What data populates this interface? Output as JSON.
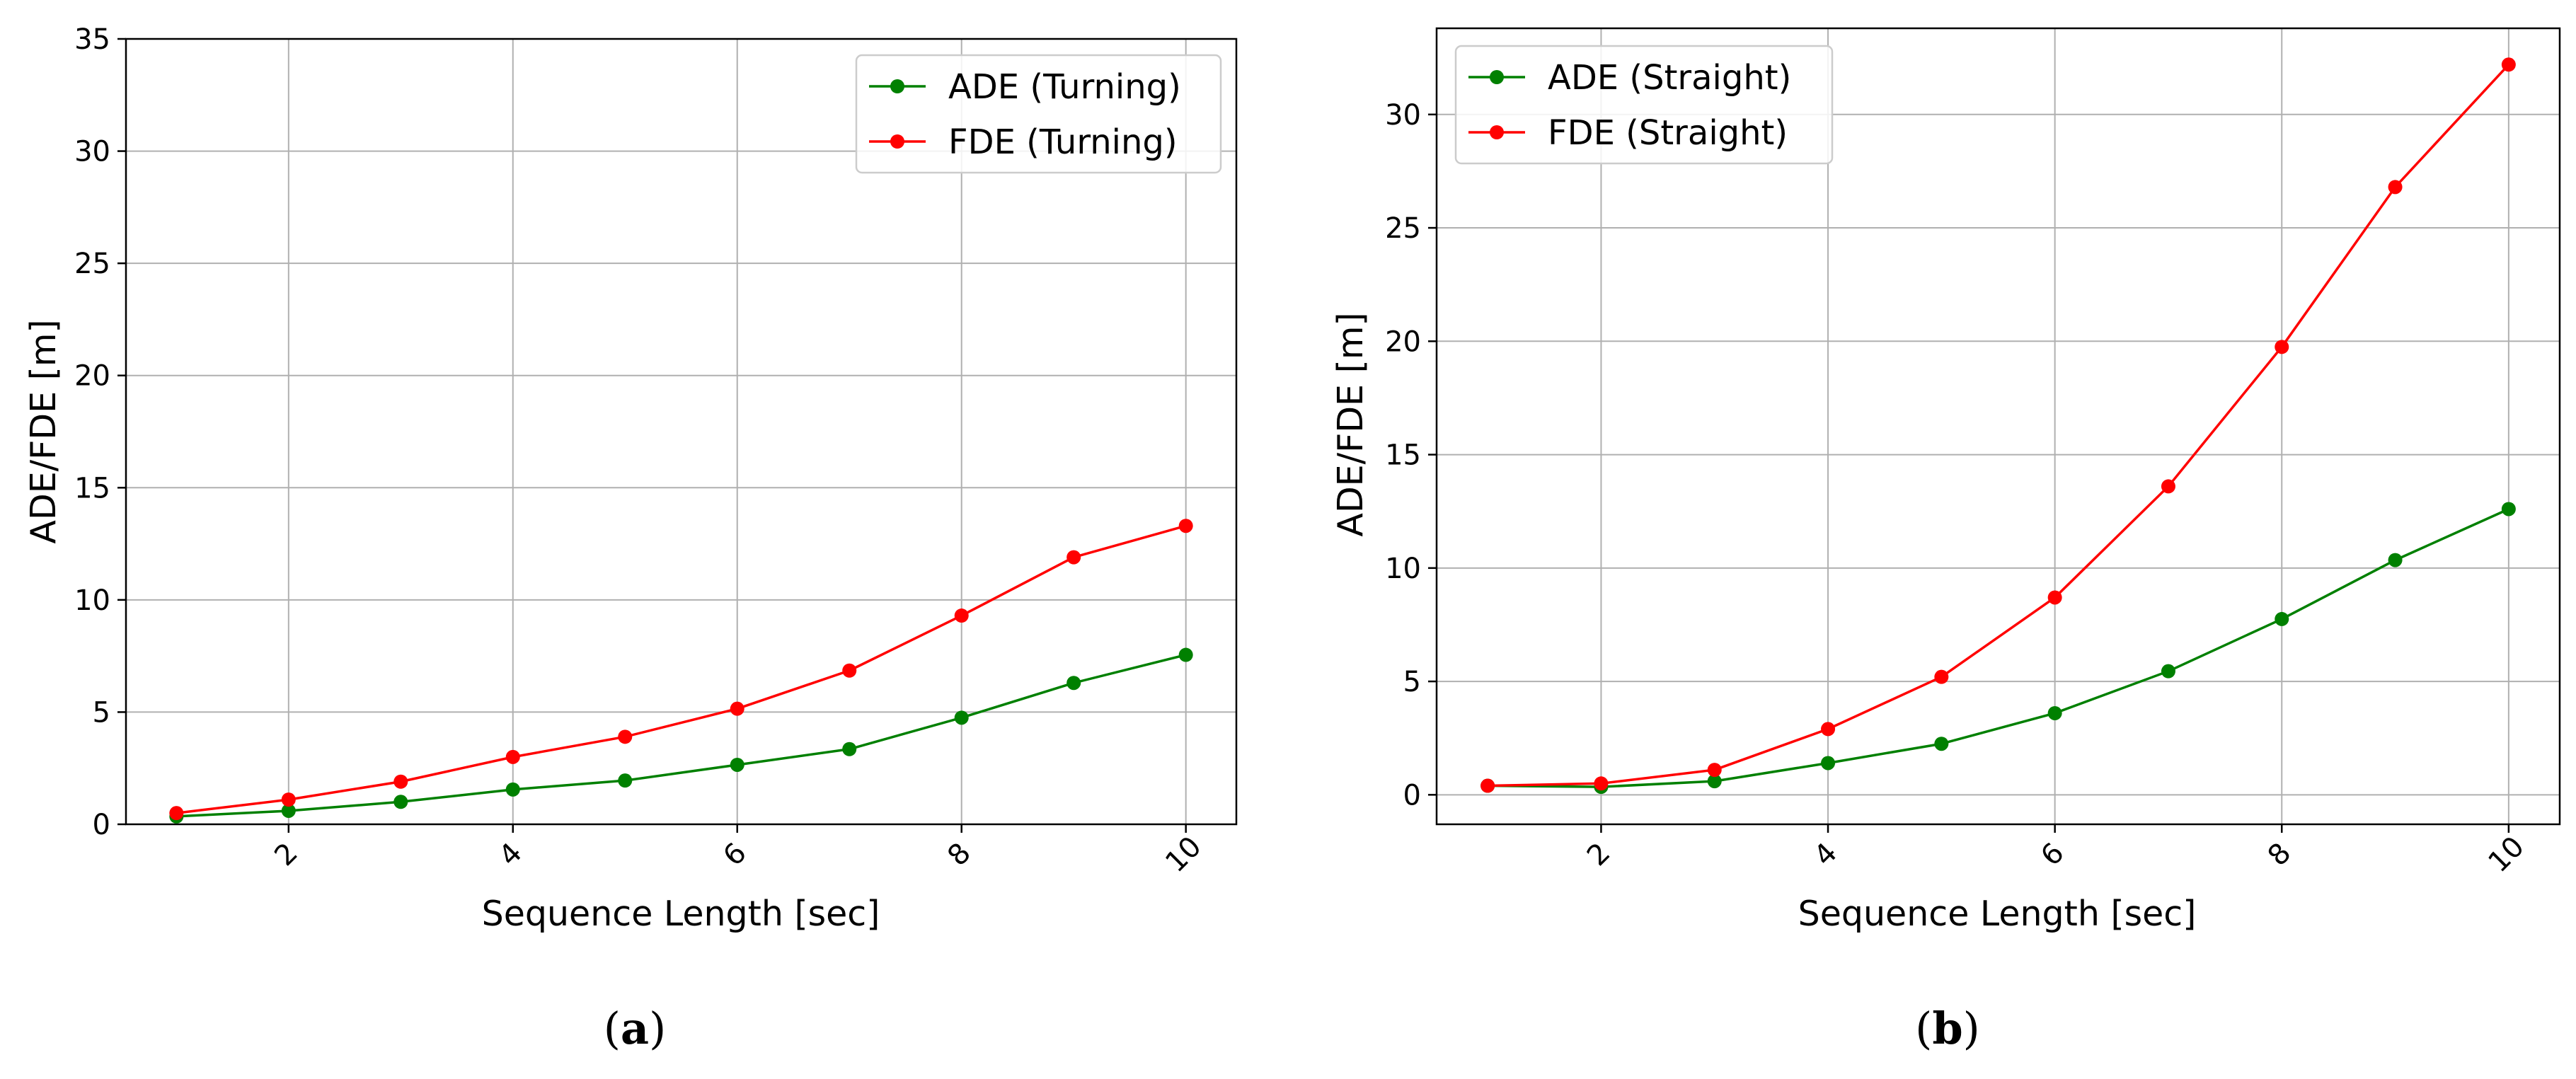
{
  "chart_data": [
    {
      "type": "line",
      "panel": "(a)",
      "panel_label": "a",
      "title": "",
      "xlabel": "Sequence Length [sec]",
      "ylabel": "ADE/FDE [m]",
      "x": [
        1,
        2,
        3,
        4,
        5,
        6,
        7,
        8,
        9,
        10
      ],
      "xlim": [
        0.55,
        10.45
      ],
      "ylim": [
        0,
        35
      ],
      "xticks": [
        2,
        4,
        6,
        8,
        10
      ],
      "xtick_labels": [
        "2",
        "4",
        "6",
        "8",
        "10"
      ],
      "yticks": [
        0,
        5,
        10,
        15,
        20,
        25,
        30,
        35
      ],
      "ytick_labels": [
        "0",
        "5",
        "10",
        "15",
        "20",
        "25",
        "30",
        "35"
      ],
      "grid": true,
      "legend_position": "top-right",
      "series": [
        {
          "name": "ADE (Turning)",
          "color": "#008000",
          "values": [
            0.35,
            0.6,
            1.0,
            1.55,
            1.95,
            2.65,
            3.35,
            4.75,
            6.3,
            7.55
          ]
        },
        {
          "name": "FDE (Turning)",
          "color": "#ff0000",
          "values": [
            0.5,
            1.1,
            1.9,
            3.0,
            3.9,
            5.15,
            6.85,
            9.3,
            11.9,
            13.3
          ]
        }
      ]
    },
    {
      "type": "line",
      "panel": "(b)",
      "panel_label": "b",
      "title": "",
      "xlabel": "Sequence Length [sec]",
      "ylabel": "ADE/FDE [m]",
      "x": [
        1,
        2,
        3,
        4,
        5,
        6,
        7,
        8,
        9,
        10
      ],
      "xlim": [
        0.55,
        10.45
      ],
      "ylim": [
        -1.3,
        33.8
      ],
      "xticks": [
        2,
        4,
        6,
        8,
        10
      ],
      "xtick_labels": [
        "2",
        "4",
        "6",
        "8",
        "10"
      ],
      "yticks": [
        0,
        5,
        10,
        15,
        20,
        25,
        30
      ],
      "ytick_labels": [
        "0",
        "5",
        "10",
        "15",
        "20",
        "25",
        "30"
      ],
      "grid": true,
      "legend_position": "top-left",
      "series": [
        {
          "name": "ADE (Straight)",
          "color": "#008000",
          "values": [
            0.4,
            0.35,
            0.6,
            1.4,
            2.25,
            3.6,
            5.45,
            7.75,
            10.35,
            12.6
          ]
        },
        {
          "name": "FDE (Straight)",
          "color": "#ff0000",
          "values": [
            0.4,
            0.5,
            1.1,
            2.9,
            5.2,
            8.7,
            13.6,
            19.75,
            26.8,
            32.2
          ]
        }
      ]
    }
  ]
}
